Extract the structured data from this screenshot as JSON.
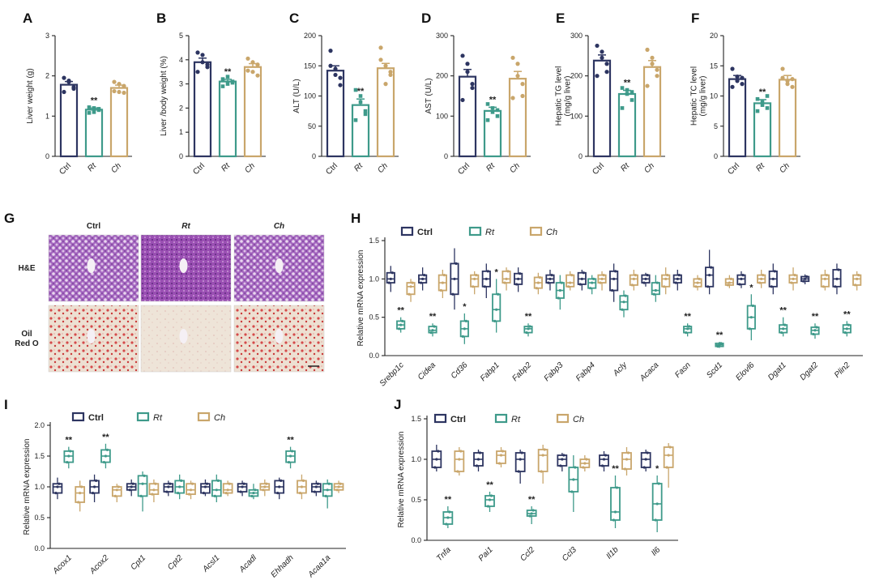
{
  "colors": {
    "Ctrl": "#2d3561",
    "Rt": "#3e9a8a",
    "Ch": "#c9a66b"
  },
  "chart_data": [
    {
      "panel": "A",
      "type": "bar",
      "categories": [
        "Ctrl",
        "Rt",
        "Ch"
      ],
      "values": [
        1.78,
        1.16,
        1.7
      ],
      "errors": [
        0.08,
        0.04,
        0.07
      ],
      "ylabel": "Liver weight (g)",
      "ylim": [
        0,
        3
      ],
      "yticks": [
        0,
        1,
        2,
        3
      ],
      "significance": [
        "",
        "**",
        ""
      ],
      "points": [
        [
          1.95,
          1.88,
          1.72,
          1.6,
          1.85,
          1.68
        ],
        [
          1.22,
          1.1,
          1.18,
          1.08,
          1.2,
          1.15
        ],
        [
          1.85,
          1.6,
          1.75,
          1.62,
          1.8,
          1.58
        ]
      ]
    },
    {
      "panel": "B",
      "type": "bar",
      "categories": [
        "Ctrl",
        "Rt",
        "Ch"
      ],
      "values": [
        3.9,
        3.1,
        3.7
      ],
      "errors": [
        0.17,
        0.09,
        0.14
      ],
      "ylabel": "Liver /body weight (%)",
      "ylim": [
        0,
        5
      ],
      "yticks": [
        0,
        1,
        2,
        3,
        4,
        5
      ],
      "significance": [
        "",
        "**",
        ""
      ],
      "points": [
        [
          4.3,
          4.2,
          3.7,
          3.5,
          3.9,
          3.8
        ],
        [
          3.2,
          3.0,
          3.1,
          2.9,
          3.3,
          3.05
        ],
        [
          4.05,
          3.5,
          3.8,
          3.55,
          3.9,
          3.35
        ]
      ]
    },
    {
      "panel": "C",
      "type": "bar",
      "categories": [
        "Ctrl",
        "Rt",
        "Ch"
      ],
      "values": [
        142,
        85,
        146
      ],
      "errors": [
        8,
        10,
        8
      ],
      "ylabel": "ALT (U/L)",
      "ylim": [
        0,
        200
      ],
      "yticks": [
        0,
        50,
        100,
        150,
        200
      ],
      "significance": [
        "",
        "**",
        ""
      ],
      "points": [
        [
          175,
          135,
          130,
          150,
          145,
          118
        ],
        [
          110,
          100,
          70,
          60,
          90,
          75
        ],
        [
          180,
          150,
          140,
          160,
          120,
          135
        ]
      ]
    },
    {
      "panel": "D",
      "type": "bar",
      "categories": [
        "Ctrl",
        "Rt",
        "Ch"
      ],
      "values": [
        198,
        113,
        193
      ],
      "errors": [
        18,
        9,
        18
      ],
      "ylabel": "AST (U/L)",
      "ylim": [
        0,
        300
      ],
      "yticks": [
        0,
        100,
        200,
        300
      ],
      "significance": [
        "",
        "**",
        ""
      ],
      "points": [
        [
          250,
          230,
          170,
          140,
          210,
          180
        ],
        [
          130,
          110,
          100,
          90,
          120,
          115
        ],
        [
          245,
          230,
          150,
          145,
          200,
          180
        ]
      ]
    },
    {
      "panel": "E",
      "type": "bar",
      "categories": [
        "Ctrl",
        "Rt",
        "Ch"
      ],
      "values": [
        238,
        155,
        222
      ],
      "errors": [
        14,
        9,
        16
      ],
      "ylabel": "Hepatic TG level\n(mg/g liver)",
      "ylim": [
        0,
        300
      ],
      "yticks": [
        0,
        100,
        200,
        300
      ],
      "significance": [
        "",
        "**",
        ""
      ],
      "points": [
        [
          275,
          260,
          230,
          200,
          245,
          210
        ],
        [
          170,
          155,
          140,
          120,
          165,
          160
        ],
        [
          265,
          245,
          200,
          175,
          230,
          215
        ]
      ]
    },
    {
      "panel": "F",
      "type": "bar",
      "categories": [
        "Ctrl",
        "Rt",
        "Ch"
      ],
      "values": [
        12.8,
        8.8,
        12.7
      ],
      "errors": [
        0.6,
        0.6,
        0.7
      ],
      "ylabel": "Hepatic TC level\n(mg/g liver)",
      "ylim": [
        0,
        20
      ],
      "yticks": [
        0,
        5,
        10,
        15,
        20
      ],
      "significance": [
        "",
        "**",
        ""
      ],
      "points": [
        [
          14.5,
          13.2,
          12,
          11.5,
          12.5,
          13
        ],
        [
          9.5,
          8.5,
          8,
          7.5,
          9,
          10
        ],
        [
          14.5,
          12,
          11.5,
          13,
          12.5,
          12.8
        ]
      ]
    },
    {
      "panel": "H",
      "type": "box",
      "ylabel": "Relative mRNA expression",
      "ylim": [
        0,
        1.5
      ],
      "yticks": [
        "0.0",
        "0.5",
        "1.0",
        "1.5"
      ],
      "legend": [
        "Ctrl",
        "Rt",
        "Ch"
      ],
      "genes": [
        "Srebp1c",
        "Cidea",
        "Cd36",
        "Fabp1",
        "Fabp2",
        "Fabp3",
        "Fabp4",
        "Acly",
        "Acaca",
        "Fasn",
        "Scd1",
        "Elovl6",
        "Dgat1",
        "Dgat2",
        "Plin2"
      ],
      "series": [
        {
          "name": "Ctrl",
          "boxes": [
            [
              0.83,
              0.95,
              1.0,
              1.08,
              1.17
            ],
            [
              0.85,
              0.95,
              1.0,
              1.05,
              1.15
            ],
            [
              0.6,
              0.8,
              1.0,
              1.2,
              1.4
            ],
            [
              0.75,
              0.9,
              1.0,
              1.1,
              1.2
            ],
            [
              0.83,
              0.93,
              1.0,
              1.07,
              1.15
            ],
            [
              0.85,
              0.95,
              1.0,
              1.05,
              1.12
            ],
            [
              0.85,
              0.93,
              1.0,
              1.08,
              1.12
            ],
            [
              0.7,
              0.85,
              1.0,
              1.1,
              1.2
            ],
            [
              0.9,
              0.95,
              1.0,
              1.05,
              1.08
            ],
            [
              0.85,
              0.95,
              1.0,
              1.05,
              1.12
            ],
            [
              0.8,
              0.9,
              1.05,
              1.15,
              1.38
            ],
            [
              0.88,
              0.93,
              1.0,
              1.05,
              1.1
            ],
            [
              0.8,
              0.9,
              1.0,
              1.1,
              1.2
            ],
            [
              0.93,
              0.97,
              1.0,
              1.03,
              1.06
            ],
            [
              0.8,
              0.9,
              1.0,
              1.12,
              1.2
            ]
          ]
        },
        {
          "name": "Rt",
          "boxes": [
            [
              0.3,
              0.35,
              0.4,
              0.45,
              0.5
            ],
            [
              0.25,
              0.3,
              0.33,
              0.38,
              0.42
            ],
            [
              0.15,
              0.25,
              0.35,
              0.45,
              0.55
            ],
            [
              0.3,
              0.45,
              0.6,
              0.8,
              1.0
            ],
            [
              0.25,
              0.3,
              0.35,
              0.38,
              0.42
            ],
            [
              0.6,
              0.75,
              0.85,
              0.95,
              1.05
            ],
            [
              0.8,
              0.88,
              0.95,
              1.0,
              1.05
            ],
            [
              0.5,
              0.6,
              0.7,
              0.78,
              0.85
            ],
            [
              0.7,
              0.8,
              0.85,
              0.95,
              1.05
            ],
            [
              0.25,
              0.3,
              0.35,
              0.38,
              0.42
            ],
            [
              0.1,
              0.12,
              0.14,
              0.16,
              0.18
            ],
            [
              0.2,
              0.35,
              0.5,
              0.65,
              0.8
            ],
            [
              0.25,
              0.3,
              0.35,
              0.4,
              0.5
            ],
            [
              0.22,
              0.28,
              0.33,
              0.37,
              0.42
            ],
            [
              0.25,
              0.3,
              0.35,
              0.4,
              0.45
            ]
          ]
        },
        {
          "name": "Ch",
          "boxes": [
            [
              0.7,
              0.8,
              0.9,
              0.95,
              1.0
            ],
            [
              0.75,
              0.85,
              0.95,
              1.05,
              1.12
            ],
            [
              0.8,
              0.9,
              1.0,
              1.05,
              1.1
            ],
            [
              0.85,
              0.95,
              1.0,
              1.1,
              1.15
            ],
            [
              0.8,
              0.88,
              0.95,
              1.02,
              1.08
            ],
            [
              0.85,
              0.9,
              0.95,
              1.05,
              1.1
            ],
            [
              0.85,
              0.95,
              1.0,
              1.05,
              1.1
            ],
            [
              0.85,
              0.92,
              1.0,
              1.05,
              1.12
            ],
            [
              0.8,
              0.9,
              1.0,
              1.05,
              1.15
            ],
            [
              0.85,
              0.9,
              0.95,
              1.0,
              1.05
            ],
            [
              0.88,
              0.92,
              0.95,
              1.0,
              1.05
            ],
            [
              0.88,
              0.95,
              1.0,
              1.05,
              1.12
            ],
            [
              0.85,
              0.95,
              1.0,
              1.05,
              1.15
            ],
            [
              0.85,
              0.9,
              1.0,
              1.05,
              1.12
            ],
            [
              0.85,
              0.92,
              1.0,
              1.05,
              1.1
            ]
          ]
        }
      ],
      "significance": [
        "**",
        "**",
        "*",
        "*",
        "**",
        "",
        "",
        "",
        "",
        "**",
        "**",
        "*",
        "**",
        "**",
        "**"
      ],
      "significance_series": [
        "Rt",
        "Rt",
        "Rt",
        "Rt",
        "Rt",
        "",
        "",
        "",
        "",
        "Rt",
        "Rt",
        "Rt",
        "Rt",
        "Rt",
        "Rt"
      ]
    },
    {
      "panel": "I",
      "type": "box",
      "ylabel": "Relative mRNA expression",
      "ylim": [
        0,
        2.0
      ],
      "yticks": [
        "0.0",
        "0.5",
        "1.0",
        "1.5",
        "2.0"
      ],
      "legend": [
        "Ctrl",
        "Rt",
        "Ch"
      ],
      "genes": [
        "Acox1",
        "Acox2",
        "Cpt1",
        "Cpt2",
        "Acsl1",
        "Acadl",
        "Ehhadh",
        "Acaa1a"
      ],
      "series": [
        {
          "name": "Ctrl",
          "boxes": [
            [
              0.8,
              0.9,
              1.0,
              1.05,
              1.15
            ],
            [
              0.75,
              0.9,
              1.0,
              1.1,
              1.2
            ],
            [
              0.85,
              0.95,
              1.0,
              1.05,
              1.12
            ],
            [
              0.85,
              0.92,
              1.0,
              1.05,
              1.1
            ],
            [
              0.85,
              0.9,
              1.0,
              1.05,
              1.12
            ],
            [
              0.85,
              0.92,
              1.0,
              1.05,
              1.1
            ],
            [
              0.8,
              0.9,
              1.0,
              1.1,
              1.15
            ],
            [
              0.85,
              0.92,
              1.0,
              1.05,
              1.1
            ]
          ]
        },
        {
          "name": "Rt",
          "boxes": [
            [
              1.3,
              1.4,
              1.5,
              1.58,
              1.65
            ],
            [
              1.3,
              1.4,
              1.5,
              1.6,
              1.7
            ],
            [
              0.6,
              0.85,
              1.05,
              1.18,
              1.25
            ],
            [
              0.8,
              0.9,
              1.0,
              1.1,
              1.2
            ],
            [
              0.75,
              0.85,
              0.95,
              1.1,
              1.2
            ],
            [
              0.8,
              0.85,
              0.9,
              0.95,
              1.05
            ],
            [
              1.3,
              1.4,
              1.5,
              1.58,
              1.65
            ],
            [
              0.65,
              0.85,
              0.95,
              1.05,
              1.12
            ]
          ]
        },
        {
          "name": "Ch",
          "boxes": [
            [
              0.6,
              0.75,
              0.9,
              1.0,
              1.1
            ],
            [
              0.75,
              0.85,
              0.95,
              1.0,
              1.05
            ],
            [
              0.75,
              0.88,
              0.95,
              1.05,
              1.12
            ],
            [
              0.8,
              0.88,
              0.95,
              1.05,
              1.1
            ],
            [
              0.85,
              0.9,
              0.95,
              1.05,
              1.1
            ],
            [
              0.85,
              0.95,
              1.0,
              1.05,
              1.12
            ],
            [
              0.8,
              0.9,
              1.0,
              1.1,
              1.2
            ],
            [
              0.9,
              0.95,
              1.0,
              1.05,
              1.1
            ]
          ]
        }
      ],
      "significance": [
        "**",
        "**",
        "",
        "",
        "",
        "",
        "**",
        ""
      ],
      "significance_series": [
        "Rt",
        "Rt",
        "",
        "",
        "",
        "",
        "Rt",
        ""
      ]
    },
    {
      "panel": "J",
      "type": "box",
      "ylabel": "Relative mRNA expression",
      "ylim": [
        0,
        1.5
      ],
      "yticks": [
        "0.0",
        "0.5",
        "1.0",
        "1.5"
      ],
      "legend": [
        "Ctrl",
        "Rt",
        "Ch"
      ],
      "genes": [
        "Tnfa",
        "Pai1",
        "Ccl2",
        "Ccl3",
        "Il1b",
        "Il6"
      ],
      "series": [
        {
          "name": "Ctrl",
          "boxes": [
            [
              0.85,
              0.9,
              1.0,
              1.1,
              1.18
            ],
            [
              0.85,
              0.92,
              1.0,
              1.08,
              1.12
            ],
            [
              0.7,
              0.85,
              1.0,
              1.08,
              1.12
            ],
            [
              0.85,
              0.92,
              1.0,
              1.05,
              1.08
            ],
            [
              0.85,
              0.92,
              1.0,
              1.05,
              1.1
            ],
            [
              0.85,
              0.9,
              1.0,
              1.08,
              1.12
            ]
          ]
        },
        {
          "name": "Rt",
          "boxes": [
            [
              0.15,
              0.2,
              0.28,
              0.35,
              0.42
            ],
            [
              0.35,
              0.42,
              0.5,
              0.55,
              0.6
            ],
            [
              0.2,
              0.3,
              0.33,
              0.37,
              0.42
            ],
            [
              0.35,
              0.6,
              0.75,
              0.9,
              1.05
            ],
            [
              0.15,
              0.25,
              0.35,
              0.65,
              0.8
            ],
            [
              0.1,
              0.25,
              0.45,
              0.7,
              0.8
            ]
          ]
        },
        {
          "name": "Ch",
          "boxes": [
            [
              0.8,
              0.85,
              1.0,
              1.1,
              1.15
            ],
            [
              0.9,
              0.95,
              1.05,
              1.1,
              1.15
            ],
            [
              0.7,
              0.85,
              1.05,
              1.12,
              1.18
            ],
            [
              0.85,
              0.9,
              0.95,
              1.0,
              1.05
            ],
            [
              0.8,
              0.88,
              1.0,
              1.08,
              1.15
            ],
            [
              0.65,
              0.9,
              1.05,
              1.15,
              1.2
            ]
          ]
        }
      ],
      "significance": [
        "**",
        "**",
        "**",
        "",
        "**",
        "*"
      ],
      "significance_series": [
        "Rt",
        "Rt",
        "Rt",
        "",
        "Rt",
        "Rt"
      ]
    }
  ],
  "histology": {
    "panel": "G",
    "columns": [
      "Ctrl",
      "Rt",
      "Ch"
    ],
    "rows": [
      "H&E",
      "Oil\nRed O"
    ]
  }
}
